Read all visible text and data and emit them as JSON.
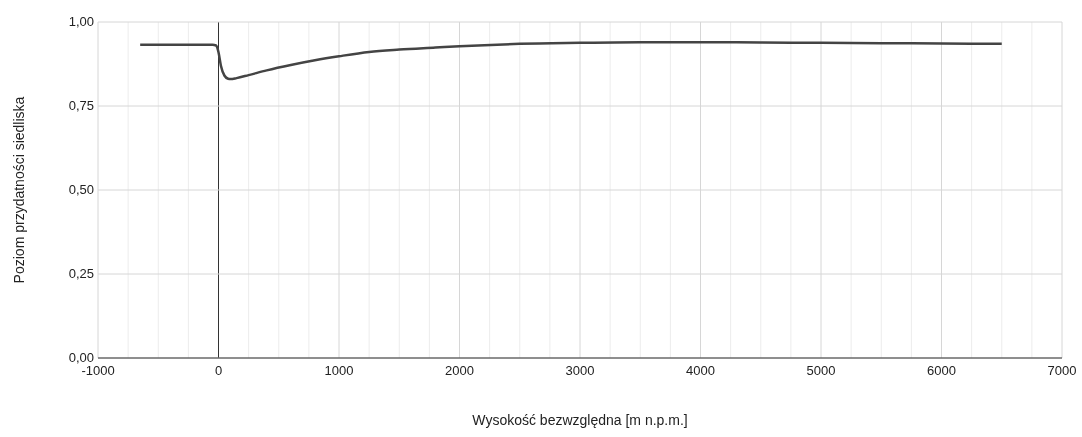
{
  "chart_data": {
    "type": "line",
    "xlabel": "Wysokość bezwzględna [m n.p.m.]",
    "ylabel": "Poziom przydatności siedliska",
    "x": [
      -650,
      -300,
      -50,
      -20,
      0,
      20,
      50,
      80,
      100,
      150,
      250,
      400,
      600,
      800,
      1000,
      1250,
      1500,
      1800,
      2000,
      2500,
      3000,
      3500,
      4000,
      4500,
      5000,
      5500,
      6000,
      6500
    ],
    "series": [
      {
        "color": "#444444",
        "values": [
          0.932,
          0.932,
          0.932,
          0.93,
          0.91,
          0.87,
          0.84,
          0.831,
          0.83,
          0.833,
          0.842,
          0.856,
          0.872,
          0.886,
          0.898,
          0.911,
          0.918,
          0.924,
          0.928,
          0.935,
          0.938,
          0.94,
          0.94,
          0.939,
          0.938,
          0.937,
          0.936,
          0.935
        ]
      }
    ],
    "xlim": [
      -1000,
      7000
    ],
    "xticks": [
      -1000,
      {
        "value": -750,
        "label": null
      },
      {
        "value": -500,
        "label": null
      },
      {
        "value": -250,
        "label": null
      },
      0,
      {
        "value": 250,
        "label": null
      },
      {
        "value": 500,
        "label": null
      },
      {
        "value": 750,
        "label": null
      },
      1000,
      {
        "value": 1250,
        "label": null
      },
      {
        "value": 1500,
        "label": null
      },
      {
        "value": 1750,
        "label": null
      },
      2000,
      {
        "value": 2250,
        "label": null
      },
      {
        "value": 2500,
        "label": null
      },
      {
        "value": 2750,
        "label": null
      },
      3000,
      {
        "value": 3250,
        "label": null
      },
      {
        "value": 3500,
        "label": null
      },
      {
        "value": 3750,
        "label": null
      },
      4000,
      {
        "value": 4250,
        "label": null
      },
      {
        "value": 4500,
        "label": null
      },
      {
        "value": 4750,
        "label": null
      },
      5000,
      {
        "value": 5250,
        "label": null
      },
      {
        "value": 5500,
        "label": null
      },
      {
        "value": 5750,
        "label": null
      },
      6000,
      {
        "value": 6250,
        "label": null
      },
      {
        "value": 6500,
        "label": null
      },
      {
        "value": 6750,
        "label": null
      },
      7000
    ],
    "ylim": [
      0,
      1
    ],
    "yticks": [
      {
        "value": 0,
        "label": "0,00"
      },
      {
        "value": 0.25,
        "label": "0,25"
      },
      {
        "value": 0.5,
        "label": "0,50"
      },
      {
        "value": 0.75,
        "label": "0,75"
      },
      {
        "value": 1,
        "label": "1,00"
      }
    ],
    "grid": true
  }
}
